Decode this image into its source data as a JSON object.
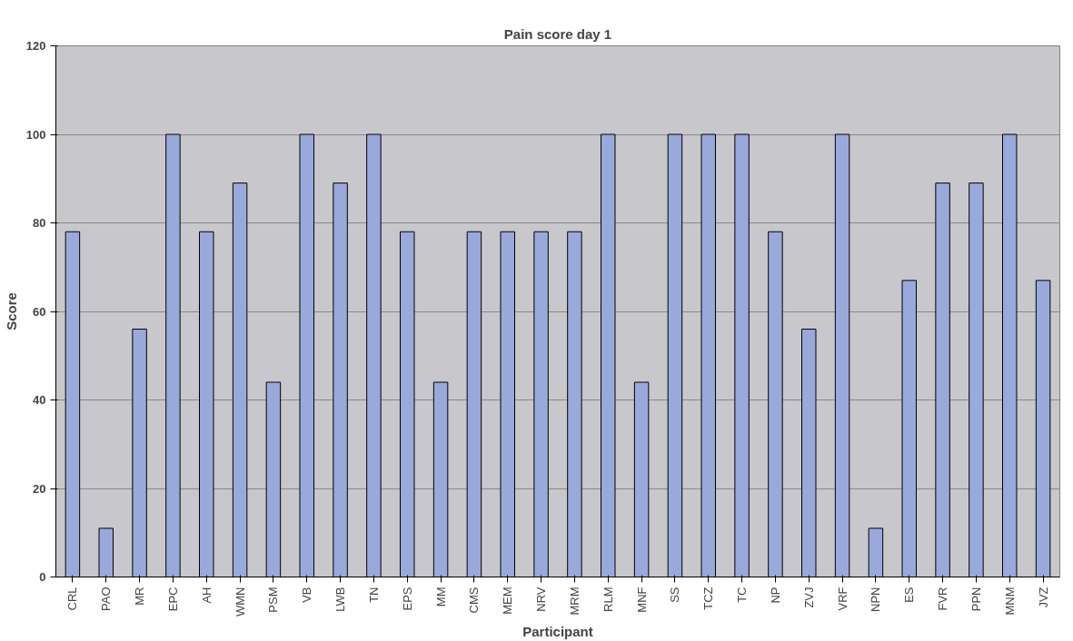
{
  "chart_data": {
    "type": "bar",
    "title": "Pain score day 1",
    "xlabel": "Participant",
    "ylabel": "Score",
    "categories": [
      "CRL",
      "PAO",
      "MR",
      "EPC",
      "AH",
      "WMN",
      "PSM",
      "VB",
      "LWB",
      "TN",
      "EPS",
      "MM",
      "CMS",
      "MEM",
      "NRV",
      "MRM",
      "RLM",
      "MNF",
      "SS",
      "TCZ",
      "TC",
      "NP",
      "ZVJ",
      "VRF",
      "NPN",
      "ES",
      "FVR",
      "PPN",
      "MNM",
      "JVZ"
    ],
    "values": [
      78,
      11,
      56,
      100,
      78,
      89,
      44,
      100,
      89,
      100,
      78,
      44,
      78,
      78,
      78,
      78,
      100,
      44,
      100,
      100,
      100,
      78,
      56,
      100,
      11,
      67,
      89,
      89,
      100,
      67
    ],
    "color": "#9aa9dc",
    "ylim": [
      0,
      120
    ],
    "yticks": [
      0,
      20,
      40,
      60,
      80,
      100,
      120
    ],
    "grid": "y"
  }
}
